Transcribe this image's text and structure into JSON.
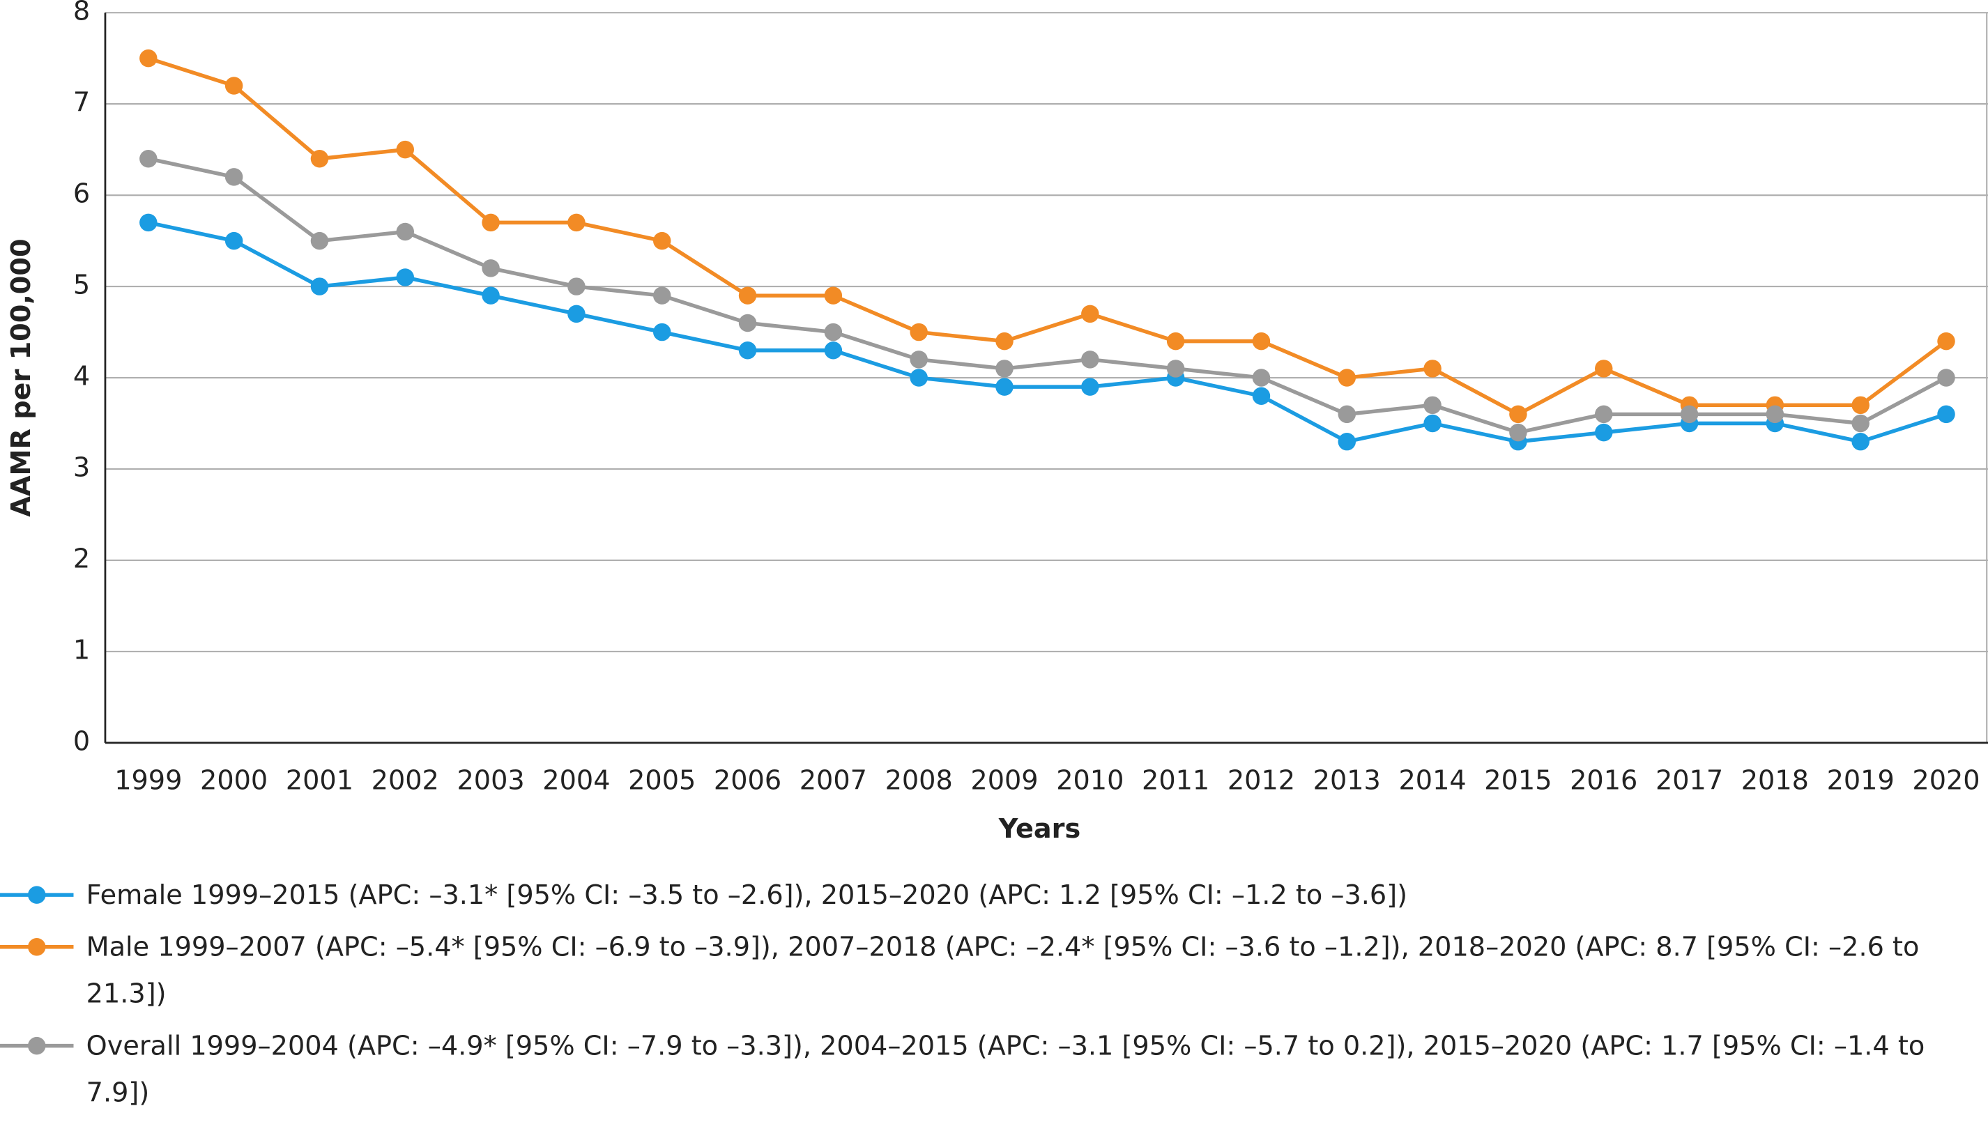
{
  "chart_data": {
    "type": "line",
    "x_label": "Years",
    "y_label": "AAMR per 100,000",
    "categories": [
      "1999",
      "2000",
      "2001",
      "2002",
      "2003",
      "2004",
      "2005",
      "2006",
      "2007",
      "2008",
      "2009",
      "2010",
      "2011",
      "2012",
      "2013",
      "2014",
      "2015",
      "2016",
      "2017",
      "2018",
      "2019",
      "2020"
    ],
    "series": [
      {
        "name": "Female 1999–2015 (APC: –3.1* [95% CI: –3.5 to –2.6]), 2015–2020 (APC: 1.2 [95% CI: –1.2 to –3.6])",
        "color": "#1b9ce2",
        "values": [
          5.7,
          5.5,
          5.0,
          5.1,
          4.9,
          4.7,
          4.5,
          4.3,
          4.3,
          4.0,
          3.9,
          3.9,
          4.0,
          3.8,
          3.3,
          3.5,
          3.3,
          3.4,
          3.5,
          3.5,
          3.3,
          3.6
        ]
      },
      {
        "name": "Male 1999–2007 (APC: –5.4* [95% CI: –6.9 to –3.9]), 2007–2018 (APC: –2.4* [95% CI: –3.6 to –1.2]), 2018–2020 (APC: 8.7 [95% CI: –2.6 to 21.3])",
        "color": "#f28b25",
        "values": [
          7.5,
          7.2,
          6.4,
          6.5,
          5.7,
          5.7,
          5.5,
          4.9,
          4.9,
          4.5,
          4.4,
          4.7,
          4.4,
          4.4,
          4.0,
          4.1,
          3.6,
          4.1,
          3.7,
          3.7,
          3.7,
          4.4
        ]
      },
      {
        "name": "Overall 1999–2004 (APC: –4.9* [95% CI: –7.9 to –3.3]), 2004–2015 (APC: –3.1 [95% CI: –5.7 to 0.2]), 2015–2020 (APC: 1.7 [95% CI: –1.4 to 7.9])",
        "color": "#9a9a9a",
        "values": [
          6.4,
          6.2,
          5.5,
          5.6,
          5.2,
          5.0,
          4.9,
          4.6,
          4.5,
          4.2,
          4.1,
          4.2,
          4.1,
          4.0,
          3.6,
          3.7,
          3.4,
          3.6,
          3.6,
          3.6,
          3.5,
          4.0
        ]
      }
    ],
    "ylim": [
      0,
      8
    ],
    "yticks": [
      0,
      1,
      2,
      3,
      4,
      5,
      6,
      7,
      8
    ],
    "grid": true
  }
}
